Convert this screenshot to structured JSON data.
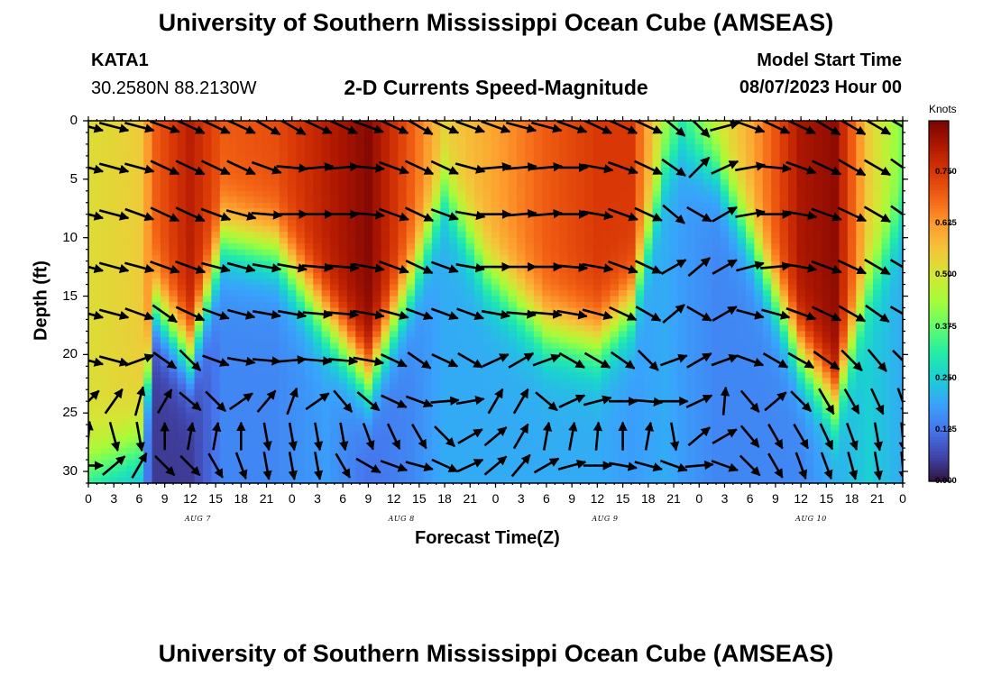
{
  "page": {
    "title": "University of Southern Mississippi Ocean Cube (AMSEAS)",
    "bottom_title": "University of Southern Mississippi Ocean Cube (AMSEAS)"
  },
  "station": {
    "name": "KATA1",
    "coords": "30.2580N  88.2130W"
  },
  "model": {
    "label": "Model Start Time",
    "start": "08/07/2023 Hour 00"
  },
  "chart_data": {
    "type": "heatmap",
    "title": "2-D Currents Speed-Magnitude",
    "xlabel": "Forecast Time(Z)",
    "ylabel": "Depth (ft)",
    "xlim": [
      0,
      96
    ],
    "ylim": [
      31,
      0
    ],
    "x_tick_labels": [
      "0",
      "3",
      "6",
      "9",
      "12",
      "15",
      "18",
      "21",
      "0",
      "3",
      "6",
      "9",
      "12",
      "15",
      "18",
      "21",
      "0",
      "3",
      "6",
      "9",
      "12",
      "15",
      "18",
      "21",
      "0",
      "3",
      "6",
      "9",
      "12",
      "15",
      "18",
      "21",
      "0"
    ],
    "y_ticks": [
      0,
      5,
      10,
      15,
      20,
      25,
      30
    ],
    "y_tick_labels": [
      "0",
      "5",
      "10",
      "15",
      "20",
      "25",
      "30"
    ],
    "day_labels": [
      {
        "label": "AUG 7",
        "hour": 12
      },
      {
        "label": "AUG 8",
        "hour": 36
      },
      {
        "label": "AUG 9",
        "hour": 60
      },
      {
        "label": "AUG 10",
        "hour": 84
      }
    ],
    "colorbar": {
      "title": "Knots",
      "min": 0.0,
      "max": 0.875,
      "ticks": [
        0.0,
        0.125,
        0.25,
        0.375,
        0.5,
        0.625,
        0.75
      ],
      "tick_labels": [
        "0.000",
        "0.125",
        "0.250",
        "0.375",
        "0.500",
        "0.625",
        "0.750"
      ],
      "colormap": [
        "#30123b",
        "#4145ab",
        "#4675ed",
        "#39a2fc",
        "#1bcfd4",
        "#24eca6",
        "#61fc6c",
        "#a4fc3b",
        "#d1e834",
        "#f3c63a",
        "#fe9b2d",
        "#f36315",
        "#d93806",
        "#b11901",
        "#7a0403"
      ]
    },
    "speed_field_description": "speed in knots sampled hourly (x) by depth (ft)",
    "speed_anchors": [
      {
        "hour": 0,
        "surface": 0.52,
        "bottom": 0.22,
        "cline": 30
      },
      {
        "hour": 6,
        "surface": 0.55,
        "bottom": 0.2,
        "cline": 28
      },
      {
        "hour": 8,
        "surface": 0.7,
        "bottom": 0.05,
        "cline": 16
      },
      {
        "hour": 12,
        "surface": 0.8,
        "bottom": 0.05,
        "cline": 20
      },
      {
        "hour": 16,
        "surface": 0.7,
        "bottom": 0.15,
        "cline": 10
      },
      {
        "hour": 22,
        "surface": 0.72,
        "bottom": 0.15,
        "cline": 11
      },
      {
        "hour": 28,
        "surface": 0.8,
        "bottom": 0.18,
        "cline": 17
      },
      {
        "hour": 33,
        "surface": 0.86,
        "bottom": 0.12,
        "cline": 22
      },
      {
        "hour": 38,
        "surface": 0.7,
        "bottom": 0.15,
        "cline": 14
      },
      {
        "hour": 42,
        "surface": 0.55,
        "bottom": 0.2,
        "cline": 6
      },
      {
        "hour": 47,
        "surface": 0.6,
        "bottom": 0.2,
        "cline": 13
      },
      {
        "hour": 54,
        "surface": 0.7,
        "bottom": 0.2,
        "cline": 18
      },
      {
        "hour": 60,
        "surface": 0.75,
        "bottom": 0.2,
        "cline": 19
      },
      {
        "hour": 64,
        "surface": 0.75,
        "bottom": 0.18,
        "cline": 16
      },
      {
        "hour": 68,
        "surface": 0.45,
        "bottom": 0.2,
        "cline": 4
      },
      {
        "hour": 70,
        "surface": 0.35,
        "bottom": 0.18,
        "cline": 2
      },
      {
        "hour": 74,
        "surface": 0.5,
        "bottom": 0.15,
        "cline": 4
      },
      {
        "hour": 78,
        "surface": 0.6,
        "bottom": 0.15,
        "cline": 10
      },
      {
        "hour": 84,
        "surface": 0.82,
        "bottom": 0.15,
        "cline": 20
      },
      {
        "hour": 88,
        "surface": 0.85,
        "bottom": 0.2,
        "cline": 24
      },
      {
        "hour": 92,
        "surface": 0.55,
        "bottom": 0.25,
        "cline": 14
      },
      {
        "hour": 96,
        "surface": 0.4,
        "bottom": 0.2,
        "cline": 8
      }
    ],
    "arrow_columns_hours": [
      0,
      3,
      6,
      9,
      12,
      15,
      18,
      21,
      24,
      27,
      30,
      33,
      36,
      39,
      42,
      45,
      48,
      51,
      54,
      57,
      60,
      63,
      66,
      69,
      72,
      75,
      78,
      81,
      84,
      87,
      90,
      93,
      96
    ],
    "arrow_rows_depth_ft": [
      0.5,
      4,
      8,
      12.5,
      16.5,
      20.5,
      24,
      27,
      29.5
    ],
    "arrow_direction_anchors_deg": [
      {
        "depth": 0.5,
        "dirs": [
          -15,
          -15,
          -15,
          -20,
          -25,
          -25,
          -25,
          -30,
          -30,
          -25,
          -25,
          -20,
          -25,
          -30,
          -25,
          -20,
          -20,
          -15,
          -15,
          -20,
          -25,
          -25,
          -25,
          -40,
          -45,
          15,
          -20,
          -25,
          -25,
          -30,
          -30,
          -30,
          -30
        ]
      },
      {
        "depth": 4,
        "dirs": [
          -15,
          -15,
          -15,
          -25,
          -25,
          -25,
          -25,
          -20,
          -5,
          5,
          5,
          -5,
          -20,
          -25,
          -25,
          -15,
          5,
          5,
          5,
          0,
          -10,
          -20,
          -25,
          -35,
          45,
          25,
          10,
          -5,
          -20,
          -25,
          -30,
          -30,
          -35
        ]
      },
      {
        "depth": 8,
        "dirs": [
          -15,
          -15,
          -20,
          -25,
          -25,
          -20,
          -15,
          -5,
          0,
          0,
          0,
          -5,
          -20,
          -25,
          -20,
          -10,
          0,
          5,
          5,
          0,
          -10,
          -20,
          -25,
          -40,
          -30,
          30,
          10,
          0,
          -10,
          -20,
          -25,
          -30,
          -35
        ]
      },
      {
        "depth": 12.5,
        "dirs": [
          -15,
          -15,
          -15,
          -20,
          -20,
          -15,
          -15,
          -10,
          -10,
          -5,
          -5,
          -10,
          -20,
          -25,
          -20,
          -10,
          0,
          0,
          0,
          -5,
          -10,
          -20,
          -25,
          30,
          40,
          30,
          15,
          5,
          -10,
          -20,
          -25,
          -30,
          -30
        ]
      },
      {
        "depth": 16.5,
        "dirs": [
          -15,
          -15,
          -20,
          -35,
          -25,
          -20,
          -15,
          -10,
          -10,
          -5,
          -5,
          -10,
          -15,
          -20,
          -20,
          -20,
          -10,
          -5,
          -5,
          -10,
          -15,
          -25,
          -30,
          40,
          -30,
          30,
          -15,
          -15,
          -20,
          -25,
          -30,
          -35,
          -30
        ]
      },
      {
        "depth": 20.5,
        "dirs": [
          -15,
          -15,
          20,
          -35,
          -45,
          -20,
          -10,
          -5,
          5,
          -5,
          -5,
          -10,
          -25,
          -35,
          -25,
          -30,
          25,
          30,
          20,
          -30,
          -30,
          -35,
          -45,
          20,
          30,
          20,
          -20,
          -30,
          -30,
          -35,
          -45,
          -50,
          -45
        ]
      },
      {
        "depth": 24,
        "dirs": [
          45,
          55,
          75,
          60,
          -40,
          -45,
          35,
          50,
          70,
          35,
          -50,
          -40,
          -25,
          -20,
          5,
          10,
          60,
          60,
          -40,
          25,
          15,
          0,
          -5,
          0,
          25,
          85,
          -50,
          40,
          -45,
          -60,
          -60,
          -65,
          -70
        ]
      },
      {
        "depth": 27,
        "dirs": [
          85,
          -75,
          -80,
          90,
          80,
          80,
          90,
          -80,
          -80,
          -80,
          -80,
          -70,
          -65,
          -60,
          -45,
          30,
          40,
          60,
          80,
          80,
          85,
          90,
          80,
          -80,
          40,
          30,
          -50,
          -60,
          -60,
          -65,
          -70,
          -80,
          -85
        ]
      },
      {
        "depth": 29.5,
        "dirs": [
          0,
          40,
          60,
          -45,
          -45,
          -60,
          -70,
          -80,
          -80,
          -80,
          -60,
          -30,
          -20,
          -15,
          -25,
          25,
          40,
          50,
          30,
          15,
          0,
          -10,
          -15,
          -20,
          5,
          -20,
          -45,
          -60,
          -70,
          -70,
          -75,
          -80,
          -85
        ]
      }
    ]
  }
}
